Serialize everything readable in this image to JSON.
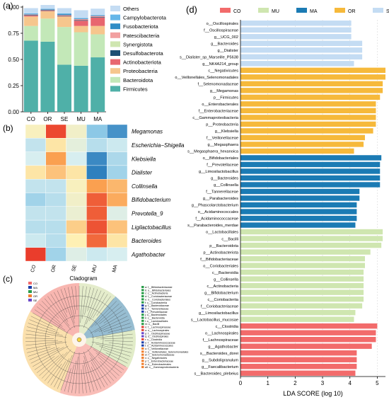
{
  "panels": {
    "a": {
      "label": "(a)"
    },
    "b": {
      "label": "(b)"
    },
    "c": {
      "label": "(c)",
      "title": "Cladogram"
    },
    "d": {
      "label": "(d)"
    }
  },
  "colors": {
    "CO": "#f26b6b",
    "MU": "#cfe6b0",
    "MA": "#1b7bb4",
    "OR": "#f6b93b",
    "SE": "#c4dcf3",
    "Others": "#c4dcf3",
    "Campylobacterota": "#65b6e8",
    "Fusobacteriota": "#2f8cc6",
    "Patescibacteria": "#f2a0a0",
    "Synergistota": "#cfe6b0",
    "Desulfobacterota": "#1e4f73",
    "Actinobacteriota": "#e8666f",
    "Proteobacteria": "#f6c68d",
    "Bacteroidota": "#c3e8b8",
    "Firmicutes": "#4fb0a8"
  },
  "chart_data": [
    {
      "id": "a",
      "type": "bar",
      "stacked": true,
      "categories": [
        "CO",
        "OR",
        "SE",
        "MU",
        "MA"
      ],
      "yticks": [
        "0.00",
        "0.25",
        "0.50",
        "0.75",
        "1.00"
      ],
      "ylim": [
        0,
        1
      ],
      "legend_position": "right",
      "series": [
        {
          "name": "Firmicutes",
          "values": [
            0.68,
            0.67,
            0.45,
            0.44,
            0.52
          ]
        },
        {
          "name": "Bacteroidota",
          "values": [
            0.14,
            0.22,
            0.36,
            0.32,
            0.22
          ]
        },
        {
          "name": "Proteobacteria",
          "values": [
            0.09,
            0.07,
            0.1,
            0.06,
            0.08
          ]
        },
        {
          "name": "Actinobacteriota",
          "values": [
            0.01,
            0.005,
            0.005,
            0.05,
            0.08
          ]
        },
        {
          "name": "Desulfobacterota",
          "values": [
            0.005,
            0.005,
            0.005,
            0.005,
            0.005
          ]
        },
        {
          "name": "Synergistota",
          "values": [
            0.0,
            0.0,
            0.0,
            0.0,
            0.0
          ]
        },
        {
          "name": "Patescibacteria",
          "values": [
            0.005,
            0.005,
            0.005,
            0.01,
            0.01
          ]
        },
        {
          "name": "Fusobacteriota",
          "values": [
            0.005,
            0.005,
            0.01,
            0.005,
            0.005
          ]
        },
        {
          "name": "Campylobacterota",
          "values": [
            0.005,
            0.005,
            0.005,
            0.005,
            0.005
          ]
        },
        {
          "name": "Others",
          "values": [
            0.05,
            0.035,
            0.05,
            0.075,
            0.06
          ]
        }
      ],
      "legend": [
        "Others",
        "Campylobacterota",
        "Fusobacteriota",
        "Patescibacteria",
        "Synergistota",
        "Desulfobacterota",
        "Actinobacteriota",
        "Proteobacteria",
        "Bacteroidota",
        "Firmicutes"
      ]
    },
    {
      "id": "b",
      "type": "heatmap",
      "columns": [
        "CO",
        "OR",
        "SE",
        "MU",
        "MA"
      ],
      "rows": [
        "Megamonas",
        "Escherichia−Shigella",
        "Klebsiella",
        "Dialister",
        "Collinsella",
        "Bifidobacterium",
        "Prevotella_9",
        "Ligilactobacillus",
        "Bacteroides",
        "Agathobacter"
      ],
      "values": [
        [
          0.2,
          1.8,
          0.1,
          -1.0,
          -1.6
        ],
        [
          -0.5,
          0.4,
          -0.1,
          -0.6,
          -0.4
        ],
        [
          -0.3,
          1.0,
          -0.3,
          -1.7,
          -0.7
        ],
        [
          0.4,
          0.7,
          0.4,
          -1.8,
          -0.8
        ],
        [
          -0.5,
          -0.5,
          0.2,
          1.0,
          0.8
        ],
        [
          -0.8,
          -0.6,
          0.1,
          1.6,
          0.9
        ],
        [
          -0.5,
          -0.5,
          0.0,
          1.6,
          -0.2
        ],
        [
          -0.6,
          -0.6,
          0.6,
          1.7,
          0.7
        ],
        [
          -0.4,
          -0.6,
          0.3,
          1.5,
          0.4
        ],
        [
          1.9,
          -0.8,
          -0.2,
          -0.4,
          -0.3
        ]
      ]
    },
    {
      "id": "d",
      "type": "bar",
      "orientation": "horizontal",
      "xlabel": "LDA SCORE (log 10)",
      "xticks": [
        "0",
        "1",
        "2",
        "3",
        "4",
        "5"
      ],
      "xlim": [
        0,
        5.3
      ],
      "legend": [
        "CO",
        "MU",
        "MA",
        "OR",
        "SE"
      ],
      "legend_position": "top",
      "bars": [
        {
          "label": "o__Oscillospirales",
          "group": "SE",
          "value": 4.05
        },
        {
          "label": "f__Oscillospiraceae",
          "group": "SE",
          "value": 4.05
        },
        {
          "label": "g__UCG_002",
          "group": "SE",
          "value": 4.05
        },
        {
          "label": "g__Bacteroides",
          "group": "SE",
          "value": 4.45
        },
        {
          "label": "g__Dialister",
          "group": "SE",
          "value": 4.45
        },
        {
          "label": "s__Dialister_sp_Marseille_P5638",
          "group": "SE",
          "value": 4.45
        },
        {
          "label": "g__NK4A214_group",
          "group": "SE",
          "value": 4.15
        },
        {
          "label": "c__Negativicutes",
          "group": "OR",
          "value": 5.3
        },
        {
          "label": "o__Veillonellales_Selenomonadales",
          "group": "OR",
          "value": 5.3
        },
        {
          "label": "f__Selenomonadaceae",
          "group": "OR",
          "value": 5.2
        },
        {
          "label": "g__Megamonas",
          "group": "OR",
          "value": 5.2
        },
        {
          "label": "p__Firmicutes",
          "group": "OR",
          "value": 5.1
        },
        {
          "label": "o__Enterobacterales",
          "group": "OR",
          "value": 4.95
        },
        {
          "label": "f__Enterobacteriaceae",
          "group": "OR",
          "value": 4.95
        },
        {
          "label": "c__Gammaproteobacteria",
          "group": "OR",
          "value": 4.95
        },
        {
          "label": "p__Proteobacteria",
          "group": "OR",
          "value": 4.95
        },
        {
          "label": "g__Klebsiella",
          "group": "OR",
          "value": 4.85
        },
        {
          "label": "f__Veillonellaceae",
          "group": "OR",
          "value": 4.55
        },
        {
          "label": "g__Megasphaera",
          "group": "OR",
          "value": 4.5
        },
        {
          "label": "s__Megasphaera_hexanoica",
          "group": "OR",
          "value": 4.15
        },
        {
          "label": "o__Bifidobacteriales",
          "group": "MA",
          "value": 5.15
        },
        {
          "label": "f__Prevotellaceae",
          "group": "MA",
          "value": 5.1
        },
        {
          "label": "g__Limosilactobacillus",
          "group": "MA",
          "value": 5.1
        },
        {
          "label": "g__Bacteroides",
          "group": "MA",
          "value": 5.1
        },
        {
          "label": "g__Collinsella",
          "group": "MA",
          "value": 5.1
        },
        {
          "label": "f__Tannerellaceae",
          "group": "MA",
          "value": 4.35
        },
        {
          "label": "g__Parabacteroides",
          "group": "MA",
          "value": 4.35
        },
        {
          "label": "g__Phascolarctobacterium",
          "group": "MA",
          "value": 4.25
        },
        {
          "label": "o__Acidaminococcales",
          "group": "MA",
          "value": 4.25
        },
        {
          "label": "f__Acidaminococcaceae",
          "group": "MA",
          "value": 4.25
        },
        {
          "label": "s__Parabacteroides_merdae",
          "group": "MA",
          "value": 4.2
        },
        {
          "label": "o__Lactobacillales",
          "group": "MU",
          "value": 5.2
        },
        {
          "label": "c__Bacilli",
          "group": "MU",
          "value": 5.2
        },
        {
          "label": "p__Bacteroidota",
          "group": "MU",
          "value": 5.15
        },
        {
          "label": "p__Actinobacteriota",
          "group": "MU",
          "value": 4.75
        },
        {
          "label": "f__Bifidobacteriaceae",
          "group": "MU",
          "value": 4.55
        },
        {
          "label": "o__Coriobacteriales",
          "group": "MU",
          "value": 4.55
        },
        {
          "label": "c__Bacteroidia",
          "group": "MU",
          "value": 4.5
        },
        {
          "label": "g__Collinsella",
          "group": "MU",
          "value": 4.5
        },
        {
          "label": "c__Actinobacteria",
          "group": "MU",
          "value": 4.5
        },
        {
          "label": "g__Bifidobacterium",
          "group": "MU",
          "value": 4.5
        },
        {
          "label": "c__Coriobacteriia",
          "group": "MU",
          "value": 4.5
        },
        {
          "label": "f__Coriobacteriaceae",
          "group": "MU",
          "value": 4.45
        },
        {
          "label": "g__Limosilactobacillus",
          "group": "MU",
          "value": 4.2
        },
        {
          "label": "s__Lactobacillus_mucosae",
          "group": "MU",
          "value": 4.15
        },
        {
          "label": "c__Clostridia",
          "group": "CO",
          "value": 5.0
        },
        {
          "label": "o__Lachnospirales",
          "group": "CO",
          "value": 4.95
        },
        {
          "label": "f__Lachnospiraceae",
          "group": "CO",
          "value": 4.95
        },
        {
          "label": "g__Agathobacter",
          "group": "CO",
          "value": 4.8
        },
        {
          "label": "s__Bacteroides_dorei",
          "group": "CO",
          "value": 4.25
        },
        {
          "label": "g__Subdoligranulum",
          "group": "CO",
          "value": 4.25
        },
        {
          "label": "g__Faecalibacterium",
          "group": "CO",
          "value": 4.25
        },
        {
          "label": "s__Bacteroides_plebeius",
          "group": "CO",
          "value": 4.2
        }
      ]
    }
  ],
  "cladogram": {
    "legend": [
      "CO",
      "MA",
      "MU",
      "OR",
      "SE"
    ],
    "labels": [
      "a: f__Bifidobacteriaceae",
      "b: o__Bifidobacteriales",
      "c: c__Actinobacteria",
      "d: f__Coriobacteriaceae",
      "e: o__Coriobacteriales",
      "f: c__Coriobacteriia",
      "g: f__Bacteroidaceae",
      "h: f__Tannerellaceae",
      "i: f__Prevotellaceae",
      "j: o__Bacteroidales",
      "k: c__Bacteroidia",
      "l: o__Lactobacillales",
      "m: c__Bacilli",
      "n: f__Lachnospiraceae",
      "o: o__Lachnospirales",
      "p: f__Oscillospiraceae",
      "q: o__Oscillospirales",
      "r: c__Clostridia",
      "s: f__Acidaminococcaceae",
      "t: o__Acidaminococcales",
      "u: f__Veillonellaceae",
      "v: o__Veillonellales_Selenomonadales",
      "w: f__Selenomonadaceae",
      "x: c__Negativicutes",
      "y: f__Enterobacteriaceae",
      "z: o__Enterobacterales",
      "a0: c__Gammaproteobacteria"
    ]
  }
}
